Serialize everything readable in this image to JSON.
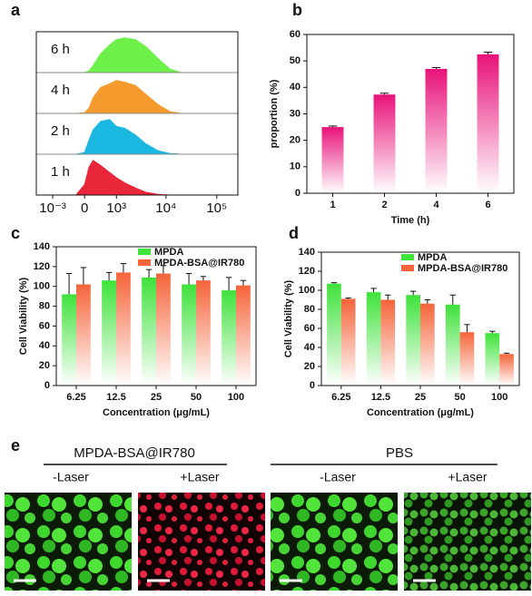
{
  "panel_labels": [
    "a",
    "b",
    "c",
    "d",
    "e"
  ],
  "chart_data": [
    {
      "type": "ridgeline",
      "xscale": "biexponential",
      "x": [
        -200,
        0,
        100,
        200,
        400,
        700,
        1000,
        1500,
        2500,
        4000,
        7000,
        12000,
        20000
      ],
      "xlim": [
        -2200,
        260000
      ],
      "xticks": [
        {
          "value": -1000,
          "label": "10⁻³"
        },
        0,
        {
          "value": 1000,
          "label": "10³"
        },
        {
          "value": 10000,
          "label": "10⁴"
        },
        {
          "value": 100000,
          "label": "10⁵"
        }
      ],
      "ylim": [
        0,
        100
      ],
      "series": [
        {
          "name": "1 h",
          "color": "#e8283a",
          "values": [
            0,
            30,
            80,
            100,
            85,
            65,
            50,
            35,
            20,
            8,
            2,
            0,
            0
          ]
        },
        {
          "name": "2 h",
          "color": "#1ab8e0",
          "values": [
            0,
            5,
            40,
            70,
            95,
            100,
            80,
            75,
            55,
            30,
            10,
            2,
            0
          ]
        },
        {
          "name": "4 h",
          "color": "#f59a2c",
          "values": [
            0,
            2,
            15,
            45,
            75,
            85,
            95,
            90,
            80,
            55,
            25,
            5,
            0
          ]
        },
        {
          "name": "6 h",
          "color": "#6ef04a",
          "values": [
            0,
            0,
            5,
            20,
            55,
            80,
            95,
            100,
            95,
            75,
            40,
            10,
            0
          ]
        }
      ]
    },
    {
      "type": "bar",
      "xlabel": "Time (h)",
      "ylabel": "proportion (%)",
      "categories": [
        "1",
        "2",
        "4",
        "6"
      ],
      "series": [
        {
          "color": "#e8127a",
          "values": [
            25,
            37.3,
            47,
            52.5
          ],
          "errors": [
            0.4,
            0.5,
            0.5,
            0.8
          ]
        }
      ],
      "ylim": [
        0,
        60
      ],
      "yticks": [
        0,
        10,
        20,
        30,
        40,
        50,
        60
      ]
    },
    {
      "type": "bar",
      "xlabel": "Concentration (μg/mL)",
      "ylabel": "Cell Viability (%)",
      "legend": "upper right",
      "categories": [
        "6.25",
        "12.5",
        "25",
        "50",
        "100"
      ],
      "series": [
        {
          "name": "MPDA",
          "color": "#3ee23a",
          "values": [
            92,
            106,
            109,
            102,
            96
          ],
          "errors": [
            21,
            8,
            8,
            11,
            13
          ]
        },
        {
          "name": "MPDA-BSA@IR780",
          "color": "#f5643a",
          "values": [
            102,
            114,
            113,
            106,
            101
          ],
          "errors": [
            17,
            9,
            8,
            4,
            5
          ]
        }
      ],
      "ylim": [
        0,
        140
      ],
      "yticks": [
        0,
        20,
        40,
        60,
        80,
        100,
        120,
        140
      ]
    },
    {
      "type": "bar",
      "xlabel": "Concentration (μg/mL)",
      "ylabel": "Cell Viability (%)",
      "legend": "upper right",
      "categories": [
        "6.25",
        "12.5",
        "25",
        "50",
        "100"
      ],
      "series": [
        {
          "name": "MPDA",
          "color": "#3ee23a",
          "values": [
            107,
            98,
            95,
            85,
            55
          ],
          "errors": [
            1,
            4,
            4,
            10,
            2
          ]
        },
        {
          "name": "MPDA-BSA@IR780",
          "color": "#f5643a",
          "values": [
            91,
            90,
            86,
            56,
            33
          ],
          "errors": [
            1,
            5,
            4,
            8,
            1
          ]
        }
      ],
      "ylim": [
        0,
        140
      ],
      "yticks": [
        0,
        20,
        40,
        60,
        80,
        100,
        120,
        140
      ]
    }
  ],
  "microscopy": {
    "groups": [
      {
        "title": "MPDA-BSA@IR780",
        "conditions": [
          "-Laser",
          "+Laser"
        ]
      },
      {
        "title": "PBS",
        "conditions": [
          "-Laser",
          "+Laser"
        ]
      }
    ]
  }
}
